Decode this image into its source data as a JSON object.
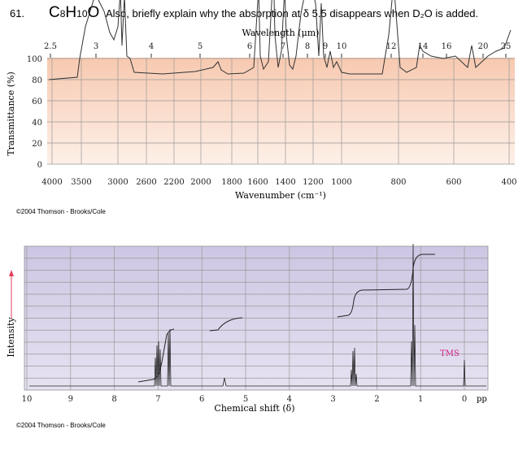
{
  "problem": {
    "number": "61.",
    "formula": [
      "C",
      "8",
      "H",
      "10",
      "O"
    ],
    "text": "Also, briefly explain why the absorption at δ 5.5 disappears when D₂O is added."
  },
  "ir": {
    "top_axis_label": "Wavelength (μm)",
    "top_ticks": [
      "2.5",
      "3",
      "4",
      "5",
      "6",
      "7",
      "8",
      "9",
      "10",
      "12",
      "14",
      "16",
      "20",
      "25"
    ],
    "y_axis_label": "Transmittance (%)",
    "y_ticks": [
      "100",
      "80",
      "60",
      "40",
      "20",
      "0"
    ],
    "bottom_ticks": [
      "4000",
      "3500",
      "3000",
      "2600",
      "2200",
      "2000",
      "1800",
      "1600",
      "1400",
      "1200",
      "1000",
      "800",
      "600",
      "400"
    ],
    "x_axis_label": "Wavenumber (cm⁻¹)",
    "copyright": "©2004 Thomson - Brooks/Cole"
  },
  "nmr": {
    "x_ticks": [
      "10",
      "9",
      "8",
      "7",
      "6",
      "5",
      "4",
      "3",
      "2",
      "1",
      "0"
    ],
    "unit": "pp",
    "x_axis_label": "Chemical shift (δ)",
    "y_axis_label": "Intensity",
    "peak_label": "TMS",
    "copyright": "©2004 Thomson - Brooks/Cole"
  }
}
